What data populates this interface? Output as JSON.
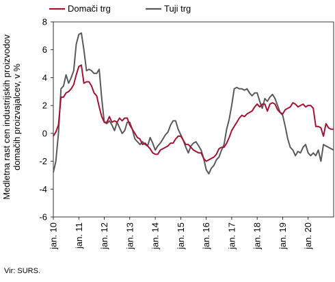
{
  "chart_data": {
    "type": "line",
    "ylabel_line1": "Medletna rast cen industrijskih proizvodov",
    "ylabel_line2": "domačih proizvajalcev, v %",
    "ylim": [
      -6,
      8
    ],
    "yticks": [
      8,
      6,
      4,
      2,
      0,
      -2,
      -4,
      -6
    ],
    "xlim": [
      2010.0,
      2021.0
    ],
    "xticks": [
      {
        "label": "jan. 10",
        "x": 2010.0
      },
      {
        "label": "jan. 11",
        "x": 2011.0
      },
      {
        "label": "jan. 12",
        "x": 2012.0
      },
      {
        "label": "jan. 13",
        "x": 2013.0
      },
      {
        "label": "jan. 14",
        "x": 2014.0
      },
      {
        "label": "jan. 15",
        "x": 2015.0
      },
      {
        "label": "jan. 16",
        "x": 2016.0
      },
      {
        "label": "jan. 17",
        "x": 2017.0
      },
      {
        "label": "jan. 18",
        "x": 2018.0
      },
      {
        "label": "jan. 19",
        "x": 2019.0
      },
      {
        "label": "jan. 20",
        "x": 2020.0
      }
    ],
    "grid": false,
    "legend_position": "top",
    "series": [
      {
        "name": "Domači trg",
        "color": "#a5122f",
        "points": [
          [
            2010.0,
            -0.2
          ],
          [
            2010.1,
            0.1
          ],
          [
            2010.2,
            0.6
          ],
          [
            2010.3,
            2.6
          ],
          [
            2010.4,
            2.6
          ],
          [
            2010.5,
            2.9
          ],
          [
            2010.6,
            3.0
          ],
          [
            2010.7,
            3.2
          ],
          [
            2010.8,
            3.5
          ],
          [
            2010.9,
            4.2
          ],
          [
            2011.0,
            4.8
          ],
          [
            2011.1,
            4.9
          ],
          [
            2011.2,
            3.6
          ],
          [
            2011.3,
            3.7
          ],
          [
            2011.4,
            3.7
          ],
          [
            2011.5,
            3.4
          ],
          [
            2011.6,
            2.9
          ],
          [
            2011.7,
            2.7
          ],
          [
            2011.8,
            1.9
          ],
          [
            2011.9,
            1.2
          ],
          [
            2012.0,
            0.8
          ],
          [
            2012.1,
            0.8
          ],
          [
            2012.2,
            1.2
          ],
          [
            2012.3,
            0.8
          ],
          [
            2012.4,
            0.9
          ],
          [
            2012.5,
            0.8
          ],
          [
            2012.6,
            1.1
          ],
          [
            2012.7,
            0.9
          ],
          [
            2012.8,
            1.1
          ],
          [
            2012.9,
            1.1
          ],
          [
            2013.0,
            0.6
          ],
          [
            2013.1,
            0.3
          ],
          [
            2013.2,
            0.0
          ],
          [
            2013.3,
            -0.3
          ],
          [
            2013.4,
            -0.4
          ],
          [
            2013.5,
            -0.8
          ],
          [
            2013.6,
            -0.7
          ],
          [
            2013.7,
            -0.9
          ],
          [
            2013.8,
            -1.1
          ],
          [
            2013.9,
            -1.4
          ],
          [
            2014.0,
            -1.5
          ],
          [
            2014.1,
            -1.5
          ],
          [
            2014.2,
            -1.2
          ],
          [
            2014.3,
            -1.1
          ],
          [
            2014.4,
            -1.0
          ],
          [
            2014.5,
            -0.9
          ],
          [
            2014.6,
            -0.7
          ],
          [
            2014.7,
            -0.7
          ],
          [
            2014.8,
            -0.4
          ],
          [
            2014.9,
            -0.2
          ],
          [
            2015.0,
            -0.2
          ],
          [
            2015.1,
            -0.5
          ],
          [
            2015.2,
            -0.8
          ],
          [
            2015.3,
            -0.8
          ],
          [
            2015.4,
            -1.0
          ],
          [
            2015.5,
            -1.2
          ],
          [
            2015.6,
            -1.3
          ],
          [
            2015.7,
            -1.4
          ],
          [
            2015.8,
            -1.4
          ],
          [
            2015.9,
            -1.8
          ],
          [
            2016.0,
            -2.0
          ],
          [
            2016.1,
            -1.9
          ],
          [
            2016.2,
            -1.8
          ],
          [
            2016.3,
            -1.7
          ],
          [
            2016.4,
            -1.5
          ],
          [
            2016.5,
            -1.1
          ],
          [
            2016.6,
            -1.0
          ],
          [
            2016.7,
            -1.0
          ],
          [
            2016.8,
            -0.7
          ],
          [
            2016.9,
            -0.3
          ],
          [
            2017.0,
            0.2
          ],
          [
            2017.1,
            0.5
          ],
          [
            2017.2,
            0.8
          ],
          [
            2017.3,
            1.1
          ],
          [
            2017.4,
            1.3
          ],
          [
            2017.5,
            1.2
          ],
          [
            2017.6,
            1.4
          ],
          [
            2017.7,
            1.5
          ],
          [
            2017.8,
            1.6
          ],
          [
            2017.9,
            1.9
          ],
          [
            2018.0,
            2.1
          ],
          [
            2018.1,
            1.9
          ],
          [
            2018.2,
            2.1
          ],
          [
            2018.3,
            2.1
          ],
          [
            2018.4,
            1.6
          ],
          [
            2018.5,
            2.1
          ],
          [
            2018.6,
            2.2
          ],
          [
            2018.7,
            2.1
          ],
          [
            2018.8,
            1.7
          ],
          [
            2018.9,
            1.5
          ],
          [
            2019.0,
            1.4
          ],
          [
            2019.1,
            1.7
          ],
          [
            2019.2,
            1.8
          ],
          [
            2019.3,
            1.9
          ],
          [
            2019.4,
            2.2
          ],
          [
            2019.5,
            2.1
          ],
          [
            2019.6,
            1.9
          ],
          [
            2019.7,
            2.0
          ],
          [
            2019.8,
            2.1
          ],
          [
            2019.9,
            1.9
          ],
          [
            2020.0,
            2.0
          ],
          [
            2020.1,
            2.0
          ],
          [
            2020.2,
            1.8
          ],
          [
            2020.3,
            0.5
          ],
          [
            2020.4,
            0.5
          ],
          [
            2020.5,
            0.4
          ],
          [
            2020.6,
            -0.2
          ],
          [
            2020.7,
            0.7
          ],
          [
            2020.8,
            0.4
          ],
          [
            2020.9,
            0.3
          ],
          [
            2021.0,
            0.3
          ]
        ]
      },
      {
        "name": "Tuji trg",
        "color": "#595959",
        "points": [
          [
            2010.0,
            -2.8
          ],
          [
            2010.1,
            -2.0
          ],
          [
            2010.2,
            0.0
          ],
          [
            2010.3,
            3.2
          ],
          [
            2010.4,
            3.4
          ],
          [
            2010.5,
            4.2
          ],
          [
            2010.6,
            3.6
          ],
          [
            2010.7,
            4.0
          ],
          [
            2010.8,
            4.5
          ],
          [
            2010.9,
            6.4
          ],
          [
            2011.0,
            7.1
          ],
          [
            2011.1,
            7.2
          ],
          [
            2011.2,
            6.0
          ],
          [
            2011.3,
            4.5
          ],
          [
            2011.4,
            4.6
          ],
          [
            2011.5,
            4.5
          ],
          [
            2011.6,
            4.3
          ],
          [
            2011.7,
            4.3
          ],
          [
            2011.8,
            4.6
          ],
          [
            2011.9,
            2.5
          ],
          [
            2012.0,
            0.8
          ],
          [
            2012.1,
            0.7
          ],
          [
            2012.2,
            0.9
          ],
          [
            2012.3,
            0.6
          ],
          [
            2012.4,
            0.2
          ],
          [
            2012.5,
            0.8
          ],
          [
            2012.6,
            0.4
          ],
          [
            2012.7,
            0.0
          ],
          [
            2012.8,
            0.2
          ],
          [
            2012.9,
            0.8
          ],
          [
            2013.0,
            0.8
          ],
          [
            2013.1,
            0.3
          ],
          [
            2013.2,
            -0.4
          ],
          [
            2013.3,
            -0.6
          ],
          [
            2013.4,
            -0.8
          ],
          [
            2013.5,
            -0.6
          ],
          [
            2013.6,
            -0.8
          ],
          [
            2013.7,
            -0.9
          ],
          [
            2013.8,
            -0.3
          ],
          [
            2013.9,
            -0.7
          ],
          [
            2014.0,
            -1.2
          ],
          [
            2014.1,
            -0.9
          ],
          [
            2014.2,
            -0.7
          ],
          [
            2014.3,
            -0.4
          ],
          [
            2014.4,
            -0.1
          ],
          [
            2014.5,
            0.1
          ],
          [
            2014.6,
            0.6
          ],
          [
            2014.7,
            0.9
          ],
          [
            2014.8,
            0.9
          ],
          [
            2014.9,
            0.3
          ],
          [
            2015.0,
            -0.1
          ],
          [
            2015.1,
            -0.5
          ],
          [
            2015.2,
            -1.0
          ],
          [
            2015.3,
            -1.4
          ],
          [
            2015.4,
            -0.9
          ],
          [
            2015.5,
            -0.7
          ],
          [
            2015.6,
            -0.6
          ],
          [
            2015.7,
            -0.9
          ],
          [
            2015.8,
            -1.2
          ],
          [
            2015.9,
            -1.8
          ],
          [
            2016.0,
            -2.6
          ],
          [
            2016.1,
            -2.9
          ],
          [
            2016.2,
            -2.5
          ],
          [
            2016.3,
            -2.3
          ],
          [
            2016.4,
            -1.9
          ],
          [
            2016.5,
            -1.7
          ],
          [
            2016.6,
            -1.2
          ],
          [
            2016.7,
            -0.8
          ],
          [
            2016.8,
            0.3
          ],
          [
            2016.9,
            1.0
          ],
          [
            2017.0,
            2.0
          ],
          [
            2017.1,
            3.2
          ],
          [
            2017.2,
            3.3
          ],
          [
            2017.3,
            3.2
          ],
          [
            2017.4,
            3.2
          ],
          [
            2017.5,
            3.1
          ],
          [
            2017.6,
            3.2
          ],
          [
            2017.7,
            2.9
          ],
          [
            2017.8,
            2.7
          ],
          [
            2017.9,
            2.9
          ],
          [
            2018.0,
            2.9
          ],
          [
            2018.1,
            2.3
          ],
          [
            2018.2,
            1.8
          ],
          [
            2018.3,
            2.5
          ],
          [
            2018.4,
            2.3
          ],
          [
            2018.5,
            2.6
          ],
          [
            2018.6,
            2.8
          ],
          [
            2018.7,
            2.5
          ],
          [
            2018.8,
            2.0
          ],
          [
            2018.9,
            1.5
          ],
          [
            2019.0,
            1.3
          ],
          [
            2019.1,
            0.5
          ],
          [
            2019.2,
            -0.4
          ],
          [
            2019.3,
            -1.0
          ],
          [
            2019.4,
            -1.2
          ],
          [
            2019.5,
            -1.6
          ],
          [
            2019.6,
            -1.3
          ],
          [
            2019.7,
            -1.4
          ],
          [
            2019.8,
            -1.0
          ],
          [
            2019.9,
            -0.8
          ],
          [
            2020.0,
            -1.4
          ],
          [
            2020.1,
            -1.6
          ],
          [
            2020.2,
            -1.4
          ],
          [
            2020.3,
            -1.6
          ],
          [
            2020.4,
            -1.2
          ],
          [
            2020.5,
            -2.0
          ],
          [
            2020.6,
            -0.8
          ],
          [
            2020.7,
            -0.9
          ],
          [
            2020.8,
            -1.0
          ],
          [
            2020.9,
            -1.1
          ],
          [
            2021.0,
            -1.2
          ]
        ]
      }
    ]
  },
  "source_text": "Vir: SURS."
}
